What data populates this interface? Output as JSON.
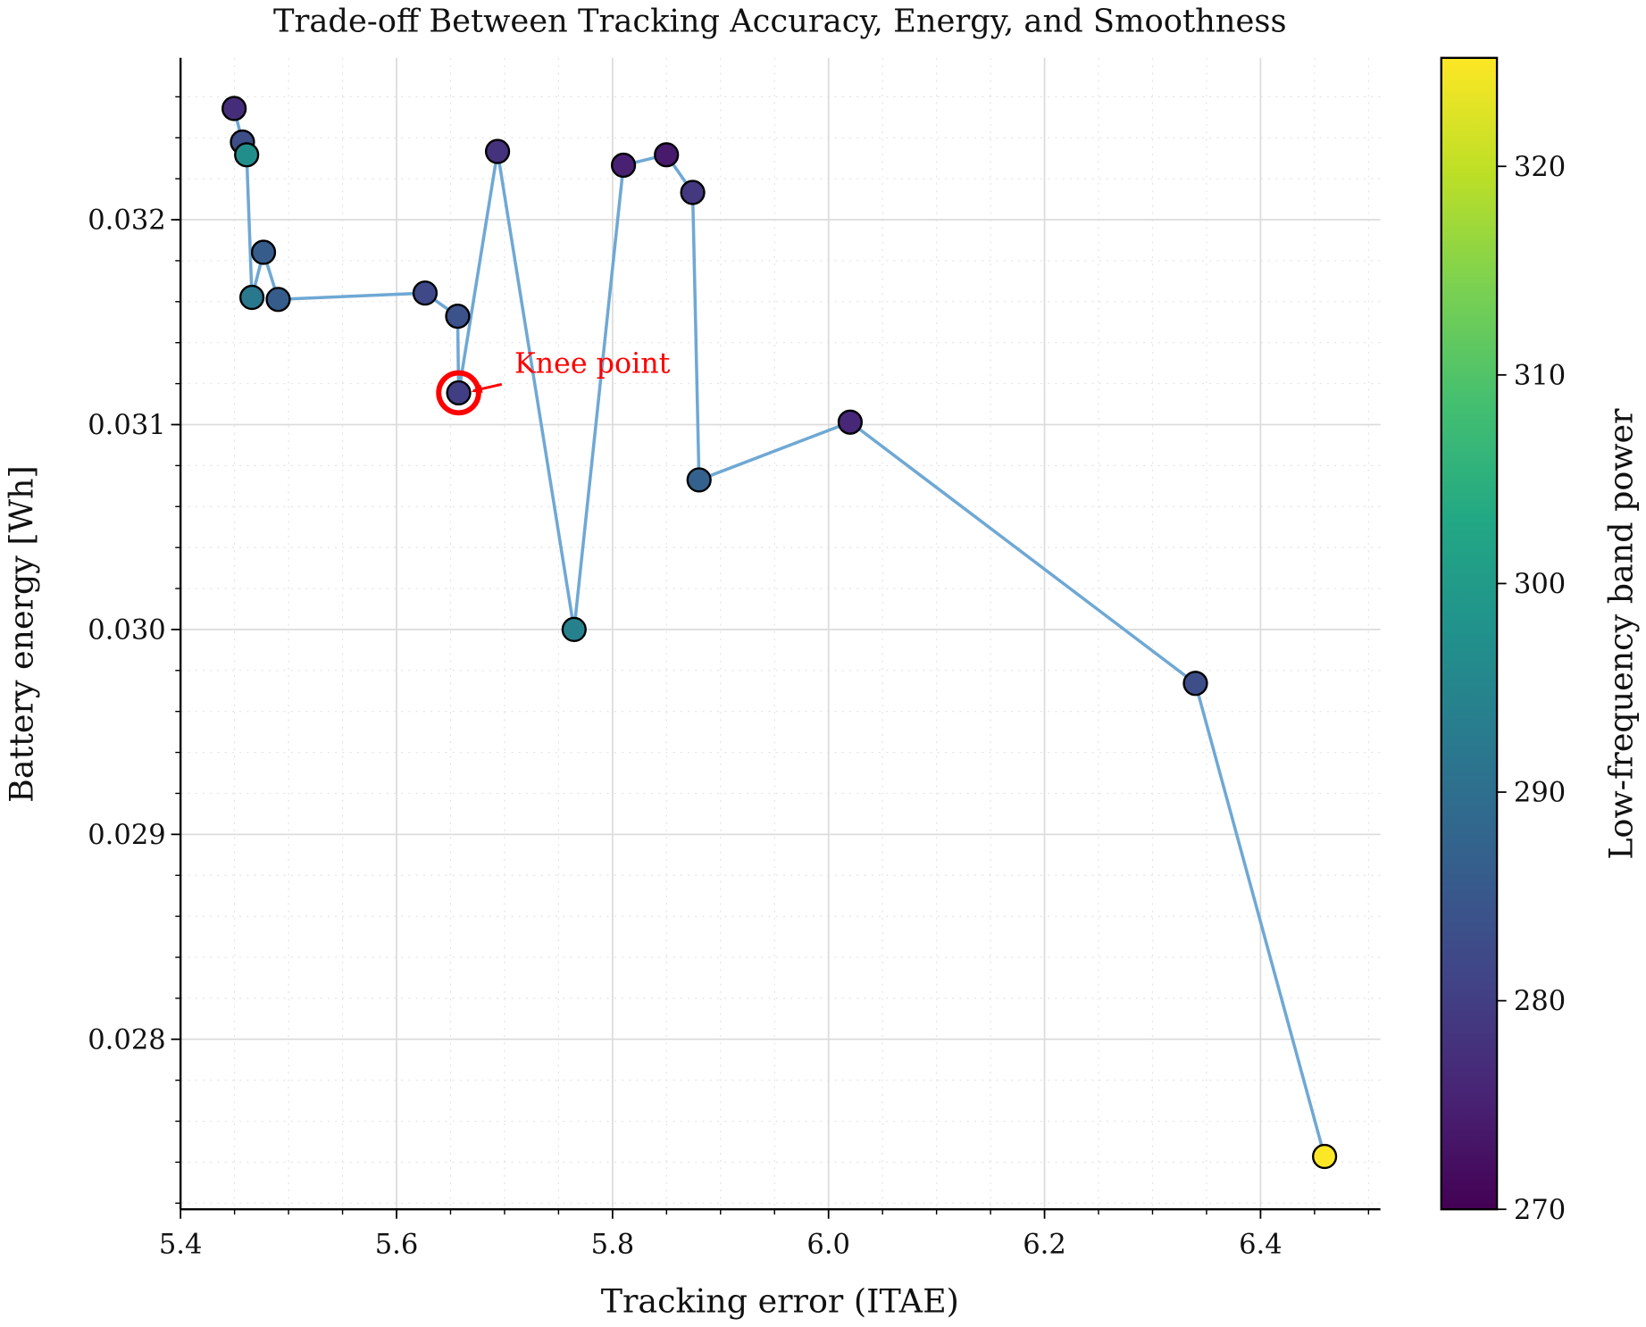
{
  "chart_data": {
    "type": "scatter",
    "title": "Trade-off Between Tracking Accuracy, Energy, and Smoothness",
    "xlabel": "Tracking error (ITAE)",
    "ylabel": "Battery energy [Wh]",
    "xlim": [
      5.4,
      6.511
    ],
    "ylim": [
      0.02717,
      0.03279
    ],
    "xticks": [
      5.4,
      5.6,
      5.8,
      6.0,
      6.2,
      6.4
    ],
    "xtick_labels": [
      "5.4",
      "5.6",
      "5.8",
      "6.0",
      "6.2",
      "6.4"
    ],
    "yticks": [
      0.028,
      0.029,
      0.03,
      0.031,
      0.032
    ],
    "ytick_labels": [
      "0.028",
      "0.029",
      "0.030",
      "0.031",
      "0.032"
    ],
    "grid": true,
    "line_color": "#6fa8d4",
    "colormap": "viridis",
    "colorbar": {
      "label": "Low-frequency band power",
      "range": [
        270,
        325.2
      ],
      "ticks": [
        270,
        280,
        290,
        300,
        310,
        320
      ],
      "tick_labels": [
        "270",
        "280",
        "290",
        "300",
        "310",
        "320"
      ]
    },
    "points": [
      {
        "x": 5.4496,
        "y": 0.032543,
        "c": 277
      },
      {
        "x": 5.4573,
        "y": 0.032379,
        "c": 283
      },
      {
        "x": 5.4612,
        "y": 0.032317,
        "c": 297
      },
      {
        "x": 5.4661,
        "y": 0.031621,
        "c": 292
      },
      {
        "x": 5.4768,
        "y": 0.031841,
        "c": 286
      },
      {
        "x": 5.4904,
        "y": 0.031611,
        "c": 286
      },
      {
        "x": 5.6264,
        "y": 0.031642,
        "c": 282
      },
      {
        "x": 5.6566,
        "y": 0.031529,
        "c": 284
      },
      {
        "x": 5.6575,
        "y": 0.031155,
        "c": 280
      },
      {
        "x": 5.6935,
        "y": 0.032333,
        "c": 278
      },
      {
        "x": 5.7644,
        "y": 0.03,
        "c": 294
      },
      {
        "x": 5.8101,
        "y": 0.032266,
        "c": 275
      },
      {
        "x": 5.8499,
        "y": 0.032317,
        "c": 274
      },
      {
        "x": 5.8742,
        "y": 0.032133,
        "c": 279
      },
      {
        "x": 5.8801,
        "y": 0.03073,
        "c": 287
      },
      {
        "x": 6.02,
        "y": 0.031012,
        "c": 276
      },
      {
        "x": 6.3397,
        "y": 0.029737,
        "c": 283
      },
      {
        "x": 6.4593,
        "y": 0.027428,
        "c": 325
      }
    ],
    "annotation": {
      "text": "Knee point",
      "point_index": 8,
      "color": "#ff0000"
    }
  }
}
